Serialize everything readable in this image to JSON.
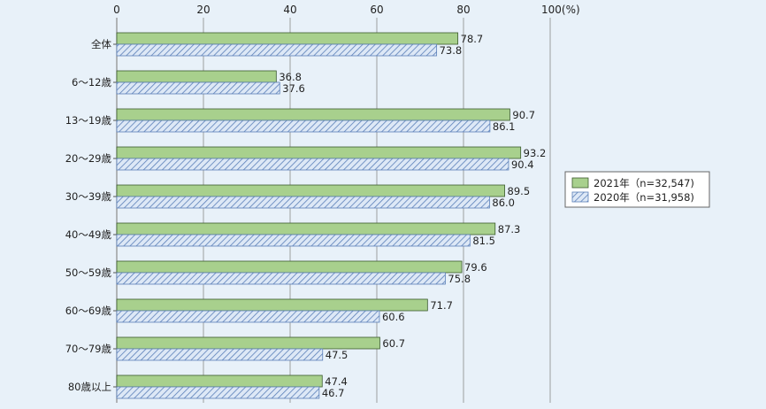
{
  "chart_data": {
    "type": "bar",
    "orientation": "horizontal",
    "categories": [
      "全体",
      "6～12歳",
      "13～19歳",
      "20～29歳",
      "30～39歳",
      "40～49歳",
      "50～59歳",
      "60～69歳",
      "70～79歳",
      "80歳以上"
    ],
    "series": [
      {
        "name": "2021年（n=32,547)",
        "values": [
          78.7,
          36.8,
          90.7,
          93.2,
          89.5,
          87.3,
          79.6,
          71.7,
          60.7,
          47.4
        ],
        "color": "#a8d08d",
        "pattern": "solid"
      },
      {
        "name": "2020年（n=31,958)",
        "values": [
          73.8,
          37.6,
          86.1,
          90.4,
          86.0,
          81.5,
          75.8,
          60.6,
          47.5,
          46.7
        ],
        "color": "#c6d9f1",
        "pattern": "hatched"
      }
    ],
    "xlim": [
      0,
      100
    ],
    "ticks": [
      0,
      20,
      40,
      60,
      80,
      100
    ],
    "tick_labels": [
      "0",
      "20",
      "40",
      "60",
      "80",
      "100(%)"
    ],
    "grid": true,
    "legend_position": "right",
    "title": "",
    "xlabel": "",
    "ylabel": ""
  },
  "colors": {
    "background": "#e8f1f9",
    "grid": "#8a8a8a",
    "bar_border": "#3a5a2c",
    "hatch_line": "#5a7fb8"
  }
}
